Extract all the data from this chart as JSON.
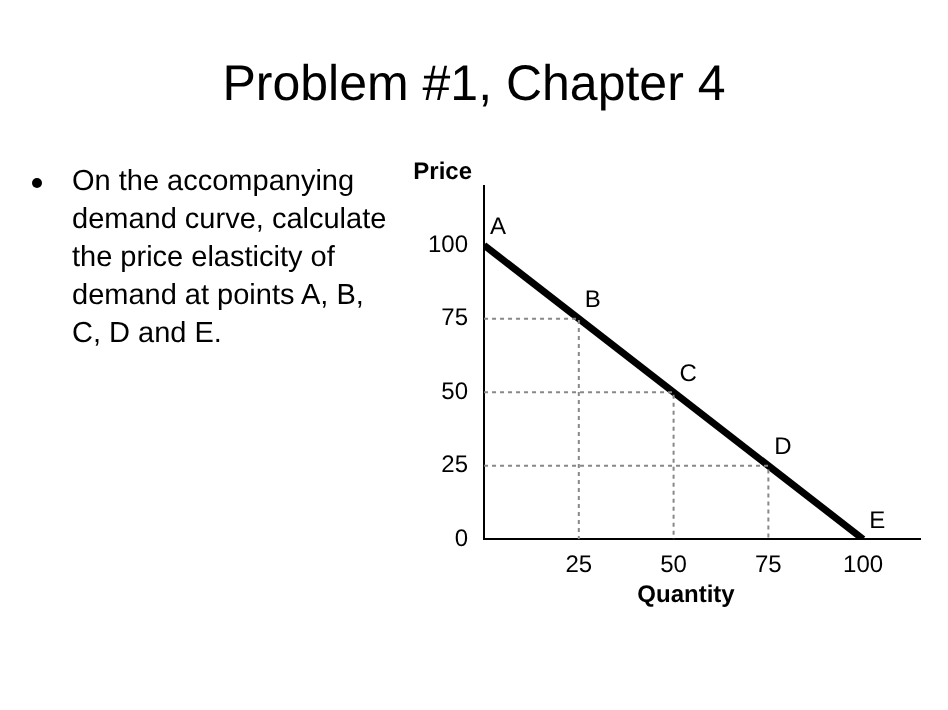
{
  "chart_data": {
    "type": "line",
    "title": "Problem #1, Chapter 4",
    "series": [
      {
        "x": [
          0,
          100
        ],
        "values": [
          100,
          0
        ],
        "color": "#000000",
        "line_style": "solid"
      },
      {
        "x": [
          0,
          25,
          25
        ],
        "values": [
          75,
          75,
          0
        ],
        "color": "#888888",
        "line_style": "dotted"
      },
      {
        "x": [
          0,
          50,
          50
        ],
        "values": [
          50,
          50,
          0
        ],
        "color": "#888888",
        "line_style": "dotted"
      },
      {
        "x": [
          0,
          75,
          75
        ],
        "values": [
          25,
          25,
          0
        ],
        "color": "#888888",
        "line_style": "dotted"
      }
    ],
    "xlim": [
      0,
      115
    ],
    "ylim": [
      0,
      120
    ],
    "xticks": [
      25,
      50,
      75,
      100
    ],
    "yticks": [
      0,
      25,
      50,
      75,
      100
    ],
    "xlabel": "Quantity",
    "ylabel": "Price",
    "grid": false,
    "legend": false,
    "marker": "none",
    "annotations": [
      "On the accompanying demand curve, calculate the price elasticity of demand at points A, B, C, D and E.",
      {
        "text": "A",
        "x": 0,
        "y": 100
      },
      {
        "text": "B",
        "x": 25,
        "y": 75
      },
      {
        "text": "C",
        "x": 50,
        "y": 50
      },
      {
        "text": "D",
        "x": 75,
        "y": 25
      },
      {
        "text": "E",
        "x": 100,
        "y": 0
      }
    ]
  }
}
